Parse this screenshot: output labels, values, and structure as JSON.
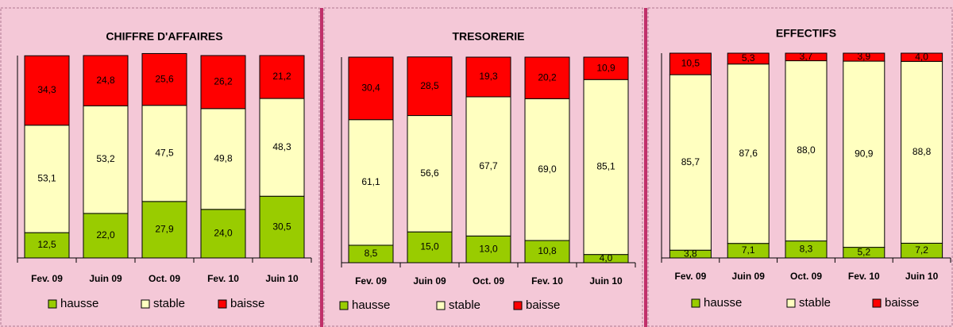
{
  "chart_data": [
    {
      "type": "bar",
      "stacked": true,
      "title": "CHIFFRE D'AFFAIRES",
      "categories": [
        "Fev. 09",
        "Juin 09",
        "Oct. 09",
        "Fev. 10",
        "Juin 10"
      ],
      "ylim": [
        0,
        100
      ],
      "series": [
        {
          "name": "hausse",
          "color": "#99cc00",
          "values": [
            12.5,
            22.0,
            27.9,
            24.0,
            30.5
          ],
          "value_labels": [
            "12,5",
            "22,0",
            "27,9",
            "24,0",
            "30,5"
          ]
        },
        {
          "name": "stable",
          "color": "#ffffc0",
          "values": [
            53.1,
            53.2,
            47.5,
            49.8,
            48.3
          ],
          "value_labels": [
            "53,1",
            "53,2",
            "47,5",
            "49,8",
            "48,3"
          ]
        },
        {
          "name": "baisse",
          "color": "#ff0000",
          "values": [
            34.3,
            24.8,
            25.6,
            26.2,
            21.2
          ],
          "value_labels": [
            "34,3",
            "24,8",
            "25,6",
            "26,2",
            "21,2"
          ]
        }
      ]
    },
    {
      "type": "bar",
      "stacked": true,
      "title": "TRESORERIE",
      "categories": [
        "Fev. 09",
        "Juin 09",
        "Oct. 09",
        "Fev. 10",
        "Juin 10"
      ],
      "ylim": [
        0,
        100
      ],
      "series": [
        {
          "name": "hausse",
          "color": "#99cc00",
          "values": [
            8.5,
            15.0,
            13.0,
            10.8,
            4.0
          ],
          "value_labels": [
            "8,5",
            "15,0",
            "13,0",
            "10,8",
            "4,0"
          ]
        },
        {
          "name": "stable",
          "color": "#ffffc0",
          "values": [
            61.1,
            56.6,
            67.7,
            69.0,
            85.1
          ],
          "value_labels": [
            "61,1",
            "56,6",
            "67,7",
            "69,0",
            "85,1"
          ]
        },
        {
          "name": "baisse",
          "color": "#ff0000",
          "values": [
            30.4,
            28.5,
            19.3,
            20.2,
            10.9
          ],
          "value_labels": [
            "30,4",
            "28,5",
            "19,3",
            "20,2",
            "10,9"
          ]
        }
      ]
    },
    {
      "type": "bar",
      "stacked": true,
      "title": "EFFECTIFS",
      "categories": [
        "Fev. 09",
        "Juin 09",
        "Oct. 09",
        "Fev. 10",
        "Juin 10"
      ],
      "ylim": [
        0,
        100
      ],
      "series": [
        {
          "name": "hausse",
          "color": "#99cc00",
          "values": [
            3.8,
            7.1,
            8.3,
            5.2,
            7.2
          ],
          "value_labels": [
            "3,8",
            "7,1",
            "8,3",
            "5,2",
            "7,2"
          ]
        },
        {
          "name": "stable",
          "color": "#ffffc0",
          "values": [
            85.7,
            87.6,
            88.0,
            90.9,
            88.8
          ],
          "value_labels": [
            "85,7",
            "87,6",
            "88,0",
            "90,9",
            "88,8"
          ]
        },
        {
          "name": "baisse",
          "color": "#ff0000",
          "values": [
            10.5,
            5.3,
            3.7,
            3.9,
            4.0
          ],
          "value_labels": [
            "10,5",
            "5,3",
            "3,7",
            "3,9",
            "4,0"
          ]
        }
      ]
    }
  ]
}
